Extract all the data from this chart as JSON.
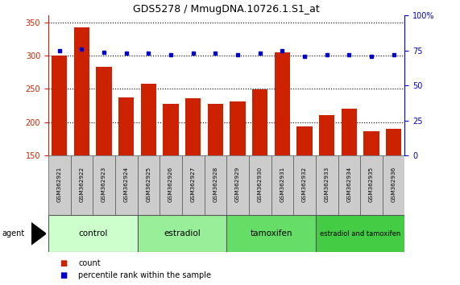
{
  "title": "GDS5278 / MmugDNA.10726.1.S1_at",
  "samples": [
    "GSM362921",
    "GSM362922",
    "GSM362923",
    "GSM362924",
    "GSM362925",
    "GSM362926",
    "GSM362927",
    "GSM362928",
    "GSM362929",
    "GSM362930",
    "GSM362931",
    "GSM362932",
    "GSM362933",
    "GSM362934",
    "GSM362935",
    "GSM362936"
  ],
  "bar_values": [
    300,
    342,
    283,
    237,
    258,
    228,
    236,
    228,
    231,
    249,
    305,
    194,
    210,
    220,
    186,
    190
  ],
  "dot_values": [
    75,
    76,
    74,
    73,
    73,
    72,
    73,
    73,
    72,
    73,
    75,
    71,
    72,
    72,
    71,
    72
  ],
  "bar_color": "#CC2200",
  "dot_color": "#0000CC",
  "ylim_left": [
    150,
    360
  ],
  "ylim_right": [
    0,
    100
  ],
  "yticks_left": [
    150,
    200,
    250,
    300,
    350
  ],
  "yticks_right": [
    0,
    25,
    50,
    75,
    100
  ],
  "ytick_labels_right": [
    "0",
    "25",
    "50",
    "75",
    "100%"
  ],
  "groups": [
    {
      "label": "control",
      "start": 0,
      "end": 4,
      "color": "#ccffcc"
    },
    {
      "label": "estradiol",
      "start": 4,
      "end": 8,
      "color": "#99ee99"
    },
    {
      "label": "tamoxifen",
      "start": 8,
      "end": 12,
      "color": "#66dd66"
    },
    {
      "label": "estradiol and tamoxifen",
      "start": 12,
      "end": 16,
      "color": "#44cc44"
    }
  ],
  "agent_label": "agent",
  "legend_count_label": "count",
  "legend_pct_label": "percentile rank within the sample",
  "bg_color": "#ffffff",
  "left_axis_color": "#CC2200",
  "right_axis_color": "#0000CC",
  "sample_box_color": "#cccccc"
}
